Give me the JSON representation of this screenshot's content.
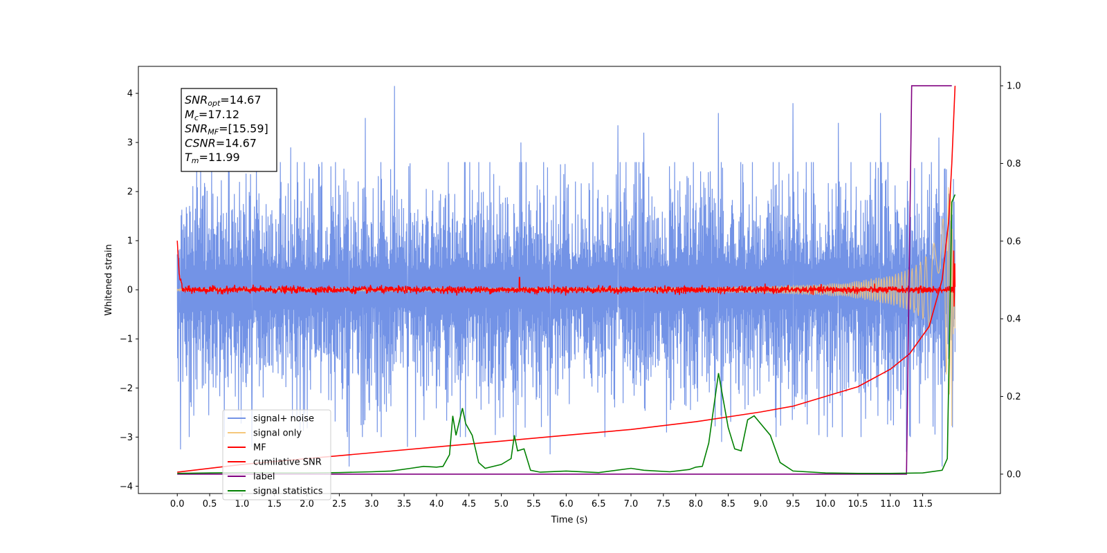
{
  "chart_data": {
    "type": "line",
    "xlabel": "Time (s)",
    "ylabel": "Whitened strain",
    "xlim": [
      -0.6,
      12.7
    ],
    "ylim": [
      -4.15,
      4.55
    ],
    "y2lim": [
      -0.05,
      1.05
    ],
    "x_ticks": [
      0.0,
      0.5,
      1.0,
      1.5,
      2.0,
      2.5,
      3.0,
      3.5,
      4.0,
      4.5,
      5.0,
      5.5,
      6.0,
      6.5,
      7.0,
      7.5,
      8.0,
      8.5,
      9.0,
      9.5,
      10.0,
      10.5,
      11.0,
      11.5
    ],
    "x_tick_labels": [
      "0.0",
      "0.5",
      "1.0",
      "1.5",
      "2.0",
      "2.5",
      "3.0",
      "3.5",
      "4.0",
      "4.5",
      "5.0",
      "5.5",
      "6.0",
      "6.5",
      "7.0",
      "7.5",
      "8.0",
      "8.5",
      "9.0",
      "9.5",
      "10.0",
      "10.5",
      "11.0",
      "11.5"
    ],
    "y_ticks": [
      -4,
      -3,
      -2,
      -1,
      0,
      1,
      2,
      3,
      4
    ],
    "y_tick_labels": [
      "−4",
      "−3",
      "−2",
      "−1",
      "0",
      "1",
      "2",
      "3",
      "4"
    ],
    "y2_ticks": [
      0.0,
      0.2,
      0.4,
      0.6,
      0.8,
      1.0
    ],
    "y2_tick_labels": [
      "0.0",
      "0.2",
      "0.4",
      "0.6",
      "0.8",
      "1.0"
    ],
    "legend_position": "lower-left",
    "legend": [
      {
        "label": "signal+ noise",
        "color": "#7393e6"
      },
      {
        "label": "signal only",
        "color": "#f5c77a"
      },
      {
        "label": "MF",
        "color": "#ff0000"
      },
      {
        "label": "cumilative SNR",
        "color": "#ff0000"
      },
      {
        "label": "label",
        "color": "#800080"
      },
      {
        "label": "signal statistics",
        "color": "#008000"
      }
    ],
    "stats_box": [
      {
        "sym": "SNR",
        "sub": "opt",
        "val": "=14.67"
      },
      {
        "sym": "M",
        "sub": "c",
        "val": "=17.12"
      },
      {
        "sym": "SNR",
        "sub": "MF",
        "val": "=[15.59]"
      },
      {
        "sym": "CSNR",
        "sub": "",
        "val": "=14.67"
      },
      {
        "sym": "T",
        "sub": "m",
        "val": "=11.99"
      }
    ],
    "series": [
      {
        "name": "signal+ noise",
        "axis": "left",
        "color": "#7393e6",
        "description": "dense noisy strain between about -3.5 and 3.5",
        "x_range": [
          0.0,
          12.0
        ],
        "envelope_high_peaks": [
          [
            0.05,
            2.3
          ],
          [
            0.3,
            2.6
          ],
          [
            0.8,
            2.4
          ],
          [
            1.75,
            2.9
          ],
          [
            2.9,
            3.5
          ],
          [
            3.35,
            4.15
          ],
          [
            5.3,
            3.0
          ],
          [
            6.8,
            3.35
          ],
          [
            7.2,
            3.2
          ],
          [
            8.35,
            3.6
          ],
          [
            9.5,
            3.8
          ],
          [
            10.2,
            3.4
          ],
          [
            10.85,
            3.6
          ],
          [
            11.75,
            3.1
          ]
        ],
        "envelope_low_peaks": [
          [
            0.05,
            -3.25
          ],
          [
            1.15,
            -3.2
          ],
          [
            2.65,
            -3.6
          ],
          [
            3.55,
            -3.2
          ],
          [
            5.75,
            -3.35
          ],
          [
            8.4,
            -3.1
          ],
          [
            11.25,
            -3.3
          ],
          [
            11.8,
            -3.6
          ]
        ]
      },
      {
        "name": "signal only",
        "axis": "left",
        "color": "#f5c77a",
        "description": "chirp signal, amplitude grows toward merger",
        "points": [
          [
            0.0,
            0.02
          ],
          [
            8.0,
            0.05
          ],
          [
            9.0,
            0.07
          ],
          [
            10.0,
            0.12
          ],
          [
            10.5,
            0.18
          ],
          [
            11.0,
            0.3
          ],
          [
            11.3,
            0.42
          ],
          [
            11.5,
            0.6
          ],
          [
            11.7,
            1.0
          ],
          [
            11.85,
            1.6
          ],
          [
            11.95,
            2.8
          ],
          [
            12.0,
            0.8
          ]
        ]
      },
      {
        "name": "MF",
        "axis": "left",
        "color": "#ff0000",
        "description": "matched-filter output near 0 with small noise",
        "points": [
          [
            0.0,
            1.0
          ],
          [
            0.03,
            0.3
          ],
          [
            0.05,
            0.1
          ],
          [
            0.1,
            0.0
          ],
          [
            5.28,
            0.25
          ],
          [
            12.0,
            0.0
          ]
        ]
      },
      {
        "name": "cumilative SNR",
        "axis": "right",
        "color": "#ff0000",
        "points": [
          [
            0.0,
            0.005
          ],
          [
            1.0,
            0.025
          ],
          [
            2.0,
            0.04
          ],
          [
            3.0,
            0.055
          ],
          [
            4.0,
            0.07
          ],
          [
            5.0,
            0.085
          ],
          [
            6.0,
            0.1
          ],
          [
            7.0,
            0.115
          ],
          [
            8.0,
            0.135
          ],
          [
            9.0,
            0.16
          ],
          [
            9.5,
            0.175
          ],
          [
            10.0,
            0.2
          ],
          [
            10.5,
            0.225
          ],
          [
            11.0,
            0.27
          ],
          [
            11.3,
            0.31
          ],
          [
            11.6,
            0.38
          ],
          [
            11.8,
            0.5
          ],
          [
            11.9,
            0.65
          ],
          [
            11.95,
            0.8
          ],
          [
            12.0,
            1.0
          ]
        ]
      },
      {
        "name": "label",
        "axis": "right",
        "color": "#800080",
        "points": [
          [
            0.0,
            0.0
          ],
          [
            11.25,
            0.0
          ],
          [
            11.33,
            1.0
          ],
          [
            11.95,
            1.0
          ]
        ]
      },
      {
        "name": "signal statistics",
        "axis": "right",
        "color": "#008000",
        "points": [
          [
            0.0,
            0.002
          ],
          [
            0.5,
            0.003
          ],
          [
            1.0,
            0.004
          ],
          [
            1.5,
            0.003
          ],
          [
            2.0,
            0.003
          ],
          [
            2.5,
            0.004
          ],
          [
            3.0,
            0.006
          ],
          [
            3.3,
            0.008
          ],
          [
            3.6,
            0.015
          ],
          [
            3.8,
            0.02
          ],
          [
            4.0,
            0.018
          ],
          [
            4.1,
            0.02
          ],
          [
            4.2,
            0.05
          ],
          [
            4.25,
            0.15
          ],
          [
            4.3,
            0.1
          ],
          [
            4.4,
            0.17
          ],
          [
            4.45,
            0.13
          ],
          [
            4.55,
            0.1
          ],
          [
            4.65,
            0.03
          ],
          [
            4.75,
            0.015
          ],
          [
            5.0,
            0.025
          ],
          [
            5.15,
            0.04
          ],
          [
            5.2,
            0.1
          ],
          [
            5.25,
            0.06
          ],
          [
            5.35,
            0.065
          ],
          [
            5.45,
            0.01
          ],
          [
            5.6,
            0.005
          ],
          [
            6.0,
            0.008
          ],
          [
            6.5,
            0.004
          ],
          [
            7.0,
            0.015
          ],
          [
            7.2,
            0.01
          ],
          [
            7.6,
            0.006
          ],
          [
            7.9,
            0.012
          ],
          [
            8.0,
            0.018
          ],
          [
            8.1,
            0.02
          ],
          [
            8.2,
            0.08
          ],
          [
            8.35,
            0.26
          ],
          [
            8.5,
            0.12
          ],
          [
            8.6,
            0.065
          ],
          [
            8.7,
            0.06
          ],
          [
            8.8,
            0.14
          ],
          [
            8.9,
            0.15
          ],
          [
            9.0,
            0.13
          ],
          [
            9.15,
            0.1
          ],
          [
            9.3,
            0.03
          ],
          [
            9.5,
            0.008
          ],
          [
            10.0,
            0.003
          ],
          [
            10.5,
            0.002
          ],
          [
            11.0,
            0.002
          ],
          [
            11.5,
            0.003
          ],
          [
            11.8,
            0.01
          ],
          [
            11.88,
            0.04
          ],
          [
            11.95,
            0.7
          ],
          [
            12.0,
            0.72
          ]
        ]
      }
    ]
  }
}
